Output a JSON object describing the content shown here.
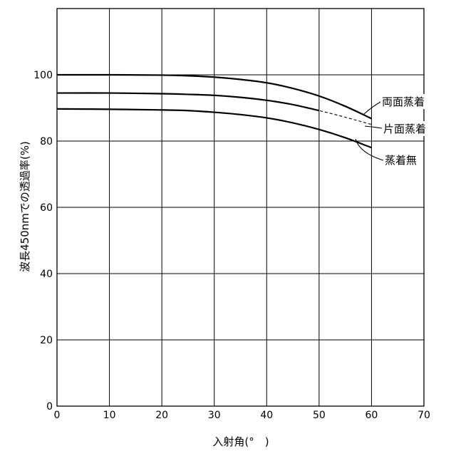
{
  "chart_data": {
    "type": "line",
    "title": "",
    "xlabel": "入射角(°　)",
    "ylabel": "波長450nmでの透過率(%)",
    "xlim": [
      0,
      70
    ],
    "ylim": [
      0,
      120
    ],
    "xticks": [
      0,
      10,
      20,
      30,
      40,
      50,
      60,
      70
    ],
    "yticks": [
      0,
      20,
      40,
      60,
      80,
      100
    ],
    "grid": true,
    "legend": "none",
    "series": [
      {
        "name": "両面蒸着",
        "style": "solid",
        "x": [
          0,
          10,
          20,
          25,
          30,
          35,
          40,
          45,
          50,
          55,
          60
        ],
        "y": [
          100,
          100,
          99.9,
          99.7,
          99.3,
          98.6,
          97.6,
          95.9,
          93.6,
          90.5,
          86.8
        ]
      },
      {
        "name": "片面蒸着",
        "style": "dashed",
        "x": [
          0,
          10,
          20,
          25,
          30,
          35,
          40,
          45,
          50,
          55,
          60
        ],
        "y": [
          94.5,
          94.5,
          94.3,
          94.1,
          93.8,
          93.2,
          92.3,
          91,
          89.2,
          87.2,
          85
        ]
      },
      {
        "name": "蒸着無",
        "style": "solid",
        "x": [
          0,
          10,
          20,
          25,
          30,
          35,
          40,
          45,
          50,
          55,
          60
        ],
        "y": [
          89.7,
          89.6,
          89.4,
          89.2,
          88.7,
          88,
          87,
          85.5,
          83.5,
          81,
          78
        ]
      }
    ],
    "colors": {
      "line": "#000000",
      "grid": "#000000",
      "background": "#ffffff"
    }
  }
}
